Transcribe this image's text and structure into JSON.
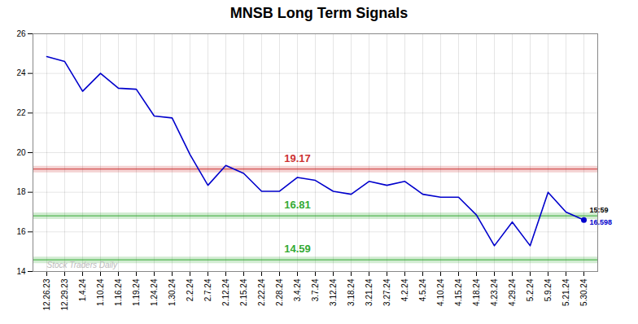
{
  "chart_data": {
    "type": "line",
    "title": "MNSB Long Term Signals",
    "categories": [
      "12.26.23",
      "12.29.23",
      "1.4.24",
      "1.10.24",
      "1.16.24",
      "1.19.24",
      "1.24.24",
      "1.30.24",
      "2.2.24",
      "2.7.24",
      "2.12.24",
      "2.15.24",
      "2.22.24",
      "2.28.24",
      "3.4.24",
      "3.7.24",
      "3.12.24",
      "3.18.24",
      "3.21.24",
      "3.27.24",
      "4.2.24",
      "4.5.24",
      "4.10.24",
      "4.15.24",
      "4.18.24",
      "4.23.24",
      "4.29.24",
      "5.2.24",
      "5.9.24",
      "5.21.24",
      "5.30.24"
    ],
    "values": [
      24.85,
      24.6,
      23.1,
      24.0,
      23.25,
      23.2,
      21.85,
      21.75,
      19.9,
      18.35,
      19.35,
      18.95,
      18.05,
      18.05,
      18.75,
      18.6,
      18.05,
      17.9,
      18.55,
      18.35,
      18.55,
      17.9,
      17.75,
      17.75,
      16.85,
      15.3,
      16.5,
      15.3,
      18.0,
      17.0,
      16.598
    ],
    "color": "#0000cc",
    "reference_lines": [
      {
        "value": 19.17,
        "label": "19.17",
        "color": "#cc3333"
      },
      {
        "value": 16.81,
        "label": "16.81",
        "color": "#33aa33"
      },
      {
        "value": 14.59,
        "label": "14.59",
        "color": "#33aa33"
      }
    ],
    "last_point_labels": [
      "15:59",
      "16.598"
    ],
    "annotations": [
      "Stock Traders Daily"
    ],
    "ylim": [
      14,
      26
    ],
    "yticks": [
      14,
      16,
      18,
      20,
      22,
      24,
      26
    ],
    "grid": true
  }
}
